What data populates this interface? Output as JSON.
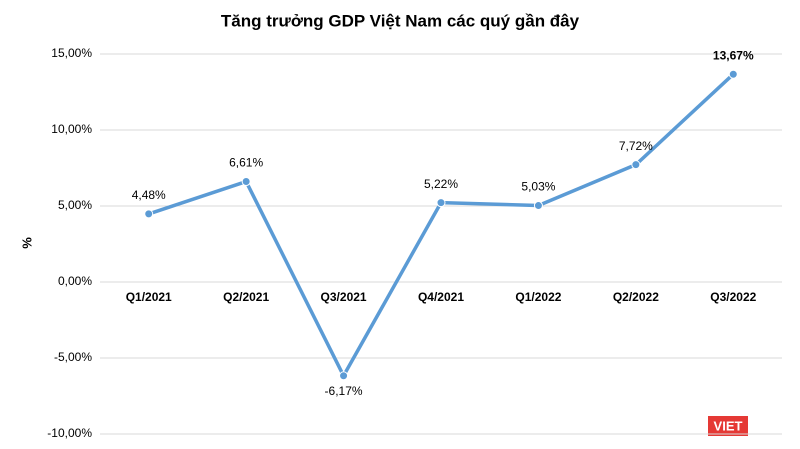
{
  "chart_data": {
    "type": "line",
    "title": "Tăng trưởng GDP Việt Nam các quý gần đây",
    "y_label": "%",
    "categories": [
      "Q1/2021",
      "Q2/2021",
      "Q3/2021",
      "Q4/2021",
      "Q1/2022",
      "Q2/2022",
      "Q3/2022"
    ],
    "values": [
      4.48,
      6.61,
      -6.17,
      5.22,
      5.03,
      7.72,
      13.67
    ],
    "value_labels": [
      "4,48%",
      "6,61%",
      "-6,17%",
      "5,22%",
      "5,03%",
      "7,72%",
      "13,67%"
    ],
    "color": "#5b9bd5",
    "ylim": [
      -10,
      15
    ],
    "yticks": [
      {
        "value": -10,
        "label": "-10,00%"
      },
      {
        "value": -5,
        "label": "-5,00%"
      },
      {
        "value": 0,
        "label": "0,00%"
      },
      {
        "value": 5,
        "label": "5,00%"
      },
      {
        "value": 10,
        "label": "10,00%"
      },
      {
        "value": 15,
        "label": "15,00%"
      }
    ],
    "grid": true,
    "watermark": "VIET"
  }
}
